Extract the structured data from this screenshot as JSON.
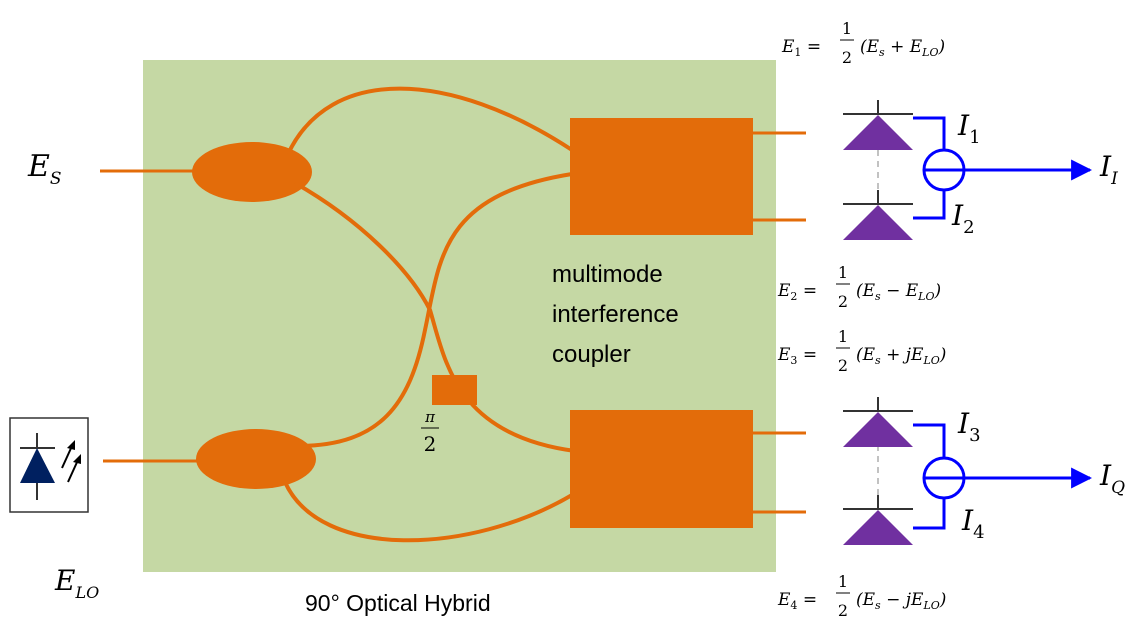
{
  "colors": {
    "background": "#ffffff",
    "hybrid_box": "#c5d8a4",
    "waveguide": "#e36c0a",
    "photodiode": "#7030a0",
    "wire": "#0000ff",
    "laser": "#002060"
  },
  "hybrid": {
    "title": "90° Optical Hybrid",
    "coupler_label": [
      "multimode",
      "interference",
      "coupler"
    ],
    "phase_shift": {
      "num": "π",
      "den": "2"
    }
  },
  "inputs": {
    "signal": {
      "base": "E",
      "sub": "S"
    },
    "lo": {
      "base": "E",
      "sub": "LO"
    }
  },
  "fields": [
    {
      "lhs": "E",
      "lhs_sub": "1",
      "num": "1",
      "den": "2",
      "body": "(E",
      "body_sub": "s",
      "mid": " + E",
      "mid_sub": "LO",
      "end": ")"
    },
    {
      "lhs": "E",
      "lhs_sub": "2",
      "num": "1",
      "den": "2",
      "body": "(E",
      "body_sub": "s",
      "mid": " − E",
      "mid_sub": "LO",
      "end": ")"
    },
    {
      "lhs": "E",
      "lhs_sub": "3",
      "num": "1",
      "den": "2",
      "body": "(E",
      "body_sub": "s",
      "mid": " + jE",
      "mid_sub": "LO",
      "end": ")"
    },
    {
      "lhs": "E",
      "lhs_sub": "4",
      "num": "1",
      "den": "2",
      "body": "(E",
      "body_sub": "s",
      "mid": " − jE",
      "mid_sub": "LO",
      "end": ")"
    }
  ],
  "currents": [
    {
      "base": "I",
      "sub": "1"
    },
    {
      "base": "I",
      "sub": "2"
    },
    {
      "base": "I",
      "sub": "3"
    },
    {
      "base": "I",
      "sub": "4"
    }
  ],
  "outputs": [
    {
      "base": "I",
      "sub": "I"
    },
    {
      "base": "I",
      "sub": "Q"
    }
  ]
}
